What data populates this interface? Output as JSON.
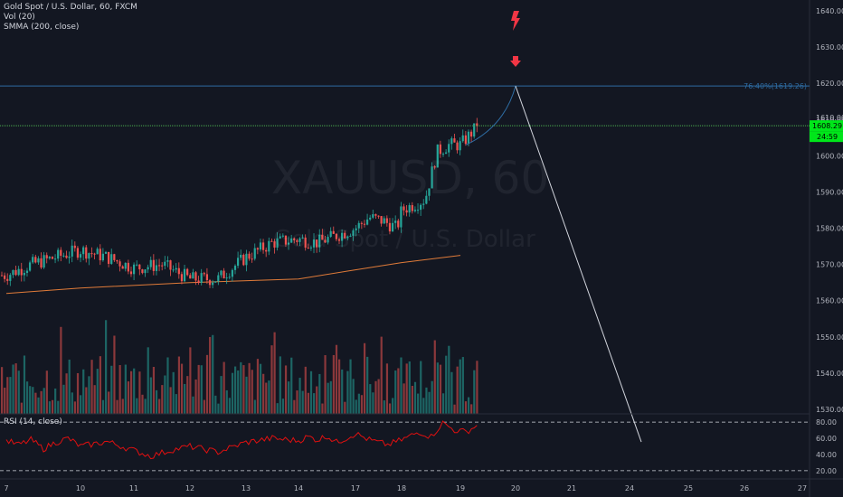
{
  "header": {
    "symbol_line": "Gold Spot / U.S. Dollar, 60, FXCM",
    "vol_line": "Vol (20)",
    "smma_line": "SMMA (200, close)",
    "rsi_line": "RSI (14, close)"
  },
  "watermark": {
    "main": "XAUUSD, 60",
    "sub": "Gold Spot / U.S. Dollar"
  },
  "colors": {
    "background": "#131722",
    "bull": "#26a69a",
    "bear": "#ef5350",
    "fib_line": "#2e6da4",
    "current_price_line": "#4caf50",
    "smma": "#e07b39",
    "rsi": "#e01010",
    "projection": "#d1d4dc",
    "signal": "#f23645"
  },
  "chart_data": {
    "type": "candlestick",
    "symbol": "XAUUSD",
    "timeframe": "60",
    "price_axis": {
      "ticks": [
        1530,
        1540,
        1550,
        1560,
        1570,
        1580,
        1590,
        1600,
        1610,
        1620,
        1630,
        1640
      ],
      "tick_labels": [
        "1530.00",
        "1540.00",
        "1550.00",
        "1560.00",
        "1570.00",
        "1580.00",
        "1590.00",
        "1600.00",
        "1610.00",
        "1620.00",
        "1630.00",
        "1640.00"
      ],
      "range": [
        1522,
        1642
      ]
    },
    "x_axis": {
      "ticks": [
        7,
        10,
        11,
        12,
        13,
        14,
        17,
        18,
        19,
        20,
        21,
        24,
        25,
        26,
        27
      ],
      "tick_labels": [
        "7",
        "10",
        "11",
        "12",
        "13",
        "14",
        "17",
        "18",
        "19",
        "20",
        "21",
        "24",
        "25",
        "26",
        "27"
      ]
    },
    "current_price": {
      "value": 1608.29,
      "label": "1608.29",
      "countdown": "24:59"
    },
    "fib_level": {
      "value": 1619.26,
      "label": "76.40%(1619.26)"
    },
    "top_label": "1610.00",
    "smma_path": [
      {
        "x": 7,
        "y": 1562
      },
      {
        "x": 10,
        "y": 1563.5
      },
      {
        "x": 12,
        "y": 1565
      },
      {
        "x": 14,
        "y": 1566
      },
      {
        "x": 17,
        "y": 1568.5
      },
      {
        "x": 18,
        "y": 1570.5
      },
      {
        "x": 19,
        "y": 1572.5
      }
    ],
    "projection": [
      {
        "x": 20,
        "y": 1619.26
      },
      {
        "x": 24.2,
        "y": 1521
      }
    ],
    "arc_path": [
      {
        "x": 19.1,
        "y": 1603
      },
      {
        "x": 19.8,
        "y": 1608
      },
      {
        "x": 20,
        "y": 1619.26
      }
    ],
    "rsi": {
      "levels": [
        80,
        20
      ],
      "tick_labels": [
        "80.00",
        "60.00",
        "40.00",
        "20.00"
      ],
      "ticks": [
        80,
        60,
        40,
        20
      ],
      "range": [
        12,
        88
      ],
      "path": [
        {
          "x": 7,
          "y": 57
        },
        {
          "x": 7.5,
          "y": 52
        },
        {
          "x": 8,
          "y": 58
        },
        {
          "x": 8.5,
          "y": 47
        },
        {
          "x": 9,
          "y": 55
        },
        {
          "x": 9.5,
          "y": 60
        },
        {
          "x": 10,
          "y": 50
        },
        {
          "x": 10.5,
          "y": 56
        },
        {
          "x": 11,
          "y": 45
        },
        {
          "x": 11.3,
          "y": 38
        },
        {
          "x": 11.7,
          "y": 46
        },
        {
          "x": 12,
          "y": 50
        },
        {
          "x": 12.5,
          "y": 43
        },
        {
          "x": 13,
          "y": 55
        },
        {
          "x": 13.5,
          "y": 60
        },
        {
          "x": 14,
          "y": 57
        },
        {
          "x": 14.5,
          "y": 62
        },
        {
          "x": 15,
          "y": 58
        },
        {
          "x": 15.5,
          "y": 63
        },
        {
          "x": 16,
          "y": 55
        },
        {
          "x": 16.5,
          "y": 60
        },
        {
          "x": 17,
          "y": 66
        },
        {
          "x": 17.3,
          "y": 58
        },
        {
          "x": 17.7,
          "y": 52
        },
        {
          "x": 18,
          "y": 58
        },
        {
          "x": 18.3,
          "y": 68
        },
        {
          "x": 18.5,
          "y": 62
        },
        {
          "x": 18.7,
          "y": 79
        },
        {
          "x": 18.9,
          "y": 70
        },
        {
          "x": 19.1,
          "y": 68
        },
        {
          "x": 19.3,
          "y": 76
        }
      ]
    }
  }
}
